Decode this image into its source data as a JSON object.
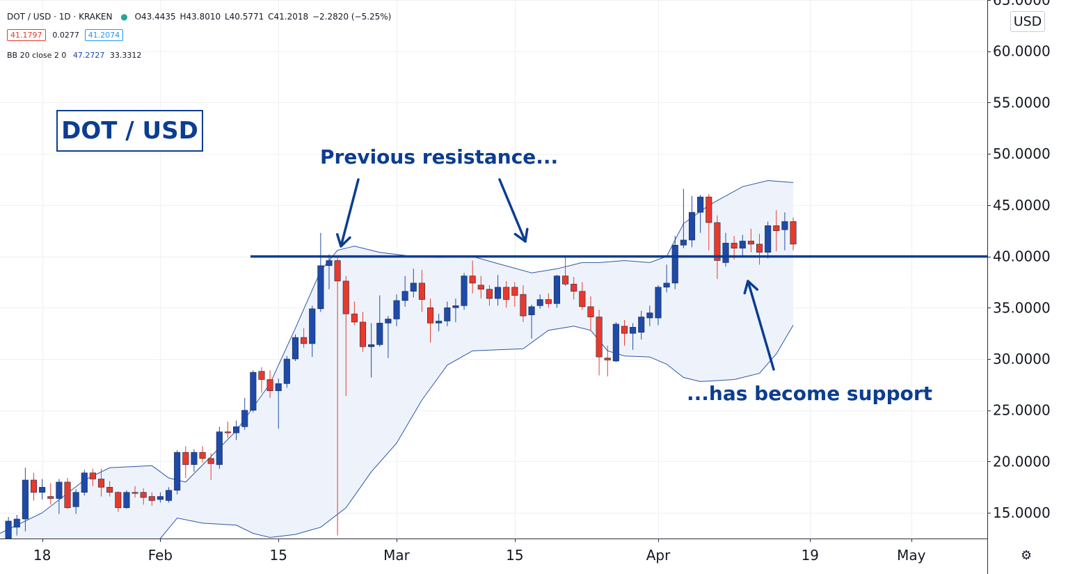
{
  "header": {
    "symbol": "DOT / USD · 1D · KRAKEN",
    "open": "O43.4435",
    "high": "H43.8010",
    "low": "L40.5771",
    "close": "C41.2018",
    "change": "−2.2820 (−5.25%)",
    "bid": "41.1797",
    "spread": "0.0277",
    "ask": "41.2074",
    "indicator_name": "BB 20 close 2 0",
    "indicator_upper": "47.2727",
    "indicator_lower": "33.3312"
  },
  "title_box": "DOT / USD",
  "annotations": {
    "resistance": "Previous resistance...",
    "support": "...has become support"
  },
  "currency_button": "USD",
  "colors": {
    "up": "#1e4aa8",
    "down": "#e8392b",
    "band": "#2a55a8",
    "band_fill": "#eef3fb",
    "annotation": "#0b3d91",
    "level_line": "#0b3d91"
  },
  "chart_data": {
    "type": "candlestick",
    "title": "DOT / USD",
    "y_range": [
      12.5,
      65
    ],
    "y_ticks": [
      "15.0000",
      "20.0000",
      "25.0000",
      "30.0000",
      "35.0000",
      "40.0000",
      "45.0000",
      "50.0000",
      "55.0000",
      "60.0000",
      "65.0000"
    ],
    "y_tick_values": [
      15,
      20,
      25,
      30,
      35,
      40,
      45,
      50,
      55,
      60,
      65
    ],
    "x_ticks": [
      {
        "label": "18",
        "date": "2021-01-18"
      },
      {
        "label": "Feb",
        "date": "2021-02-01"
      },
      {
        "label": "15",
        "date": "2021-02-15"
      },
      {
        "label": "Mar",
        "date": "2021-03-01"
      },
      {
        "label": "15",
        "date": "2021-03-15"
      },
      {
        "label": "Apr",
        "date": "2021-04-01"
      },
      {
        "label": "19",
        "date": "2021-04-19"
      },
      {
        "label": "May",
        "date": "2021-05-01"
      }
    ],
    "x_range": [
      "2021-01-13",
      "2021-05-10"
    ],
    "level": 40.0,
    "candles": [
      {
        "d": "2021-01-14",
        "o": 12.5,
        "h": 14.6,
        "l": 12.5,
        "c": 14.2
      },
      {
        "d": "2021-01-15",
        "o": 13.6,
        "h": 14.8,
        "l": 12.8,
        "c": 14.4
      },
      {
        "d": "2021-01-16",
        "o": 14.4,
        "h": 19.4,
        "l": 13.2,
        "c": 18.2
      },
      {
        "d": "2021-01-17",
        "o": 18.2,
        "h": 18.9,
        "l": 16.2,
        "c": 17.0
      },
      {
        "d": "2021-01-18",
        "o": 17.0,
        "h": 18.3,
        "l": 16.3,
        "c": 17.5
      },
      {
        "d": "2021-01-19",
        "o": 16.6,
        "h": 17.9,
        "l": 15.8,
        "c": 16.4
      },
      {
        "d": "2021-01-20",
        "o": 16.4,
        "h": 18.3,
        "l": 14.9,
        "c": 18.0
      },
      {
        "d": "2021-01-21",
        "o": 18.0,
        "h": 18.4,
        "l": 15.4,
        "c": 15.5
      },
      {
        "d": "2021-01-22",
        "o": 15.6,
        "h": 17.3,
        "l": 14.9,
        "c": 17.0
      },
      {
        "d": "2021-01-23",
        "o": 17.0,
        "h": 19.2,
        "l": 16.7,
        "c": 18.9
      },
      {
        "d": "2021-01-24",
        "o": 18.9,
        "h": 19.3,
        "l": 17.6,
        "c": 18.3
      },
      {
        "d": "2021-01-25",
        "o": 18.3,
        "h": 19.3,
        "l": 16.6,
        "c": 17.5
      },
      {
        "d": "2021-01-26",
        "o": 17.5,
        "h": 18.1,
        "l": 16.6,
        "c": 17.0
      },
      {
        "d": "2021-01-27",
        "o": 17.0,
        "h": 17.1,
        "l": 15.1,
        "c": 15.5
      },
      {
        "d": "2021-01-28",
        "o": 15.5,
        "h": 17.2,
        "l": 15.4,
        "c": 17.0
      },
      {
        "d": "2021-01-29",
        "o": 17.0,
        "h": 17.6,
        "l": 16.5,
        "c": 16.9
      },
      {
        "d": "2021-01-30",
        "o": 17.0,
        "h": 17.4,
        "l": 15.8,
        "c": 16.5
      },
      {
        "d": "2021-01-31",
        "o": 16.6,
        "h": 17.0,
        "l": 15.7,
        "c": 16.2
      },
      {
        "d": "2021-02-01",
        "o": 16.3,
        "h": 17.0,
        "l": 16.0,
        "c": 16.6
      },
      {
        "d": "2021-02-02",
        "o": 16.2,
        "h": 17.5,
        "l": 16.0,
        "c": 17.2
      },
      {
        "d": "2021-02-03",
        "o": 17.2,
        "h": 21.1,
        "l": 16.8,
        "c": 20.9
      },
      {
        "d": "2021-02-04",
        "o": 20.9,
        "h": 21.5,
        "l": 18.4,
        "c": 19.7
      },
      {
        "d": "2021-02-05",
        "o": 19.7,
        "h": 21.2,
        "l": 19.0,
        "c": 20.9
      },
      {
        "d": "2021-02-06",
        "o": 20.9,
        "h": 21.5,
        "l": 19.9,
        "c": 20.3
      },
      {
        "d": "2021-02-07",
        "o": 20.3,
        "h": 20.8,
        "l": 18.2,
        "c": 19.8
      },
      {
        "d": "2021-02-08",
        "o": 19.7,
        "h": 23.4,
        "l": 19.3,
        "c": 22.9
      },
      {
        "d": "2021-02-09",
        "o": 22.9,
        "h": 23.9,
        "l": 22.3,
        "c": 22.8
      },
      {
        "d": "2021-02-10",
        "o": 22.8,
        "h": 24.0,
        "l": 22.1,
        "c": 23.4
      },
      {
        "d": "2021-02-11",
        "o": 23.4,
        "h": 26.2,
        "l": 23.1,
        "c": 25.0
      },
      {
        "d": "2021-02-12",
        "o": 25.0,
        "h": 28.9,
        "l": 24.8,
        "c": 28.7
      },
      {
        "d": "2021-02-13",
        "o": 28.8,
        "h": 29.2,
        "l": 26.7,
        "c": 28.0
      },
      {
        "d": "2021-02-14",
        "o": 28.0,
        "h": 28.9,
        "l": 26.2,
        "c": 26.9
      },
      {
        "d": "2021-02-15",
        "o": 26.9,
        "h": 28.1,
        "l": 23.2,
        "c": 27.6
      },
      {
        "d": "2021-02-16",
        "o": 27.6,
        "h": 30.3,
        "l": 27.2,
        "c": 30.0
      },
      {
        "d": "2021-02-17",
        "o": 30.0,
        "h": 32.4,
        "l": 29.8,
        "c": 32.1
      },
      {
        "d": "2021-02-18",
        "o": 32.1,
        "h": 33.0,
        "l": 31.1,
        "c": 31.5
      },
      {
        "d": "2021-02-19",
        "o": 31.5,
        "h": 35.2,
        "l": 30.2,
        "c": 34.9
      },
      {
        "d": "2021-02-20",
        "o": 34.9,
        "h": 42.3,
        "l": 34.6,
        "c": 39.1
      },
      {
        "d": "2021-02-21",
        "o": 39.1,
        "h": 40.2,
        "l": 36.8,
        "c": 39.6
      },
      {
        "d": "2021-02-22",
        "o": 39.6,
        "h": 40.0,
        "l": 12.8,
        "c": 37.6
      },
      {
        "d": "2021-02-23",
        "o": 37.6,
        "h": 38.1,
        "l": 26.4,
        "c": 34.4
      },
      {
        "d": "2021-02-24",
        "o": 34.4,
        "h": 35.6,
        "l": 33.3,
        "c": 33.6
      },
      {
        "d": "2021-02-25",
        "o": 33.6,
        "h": 34.6,
        "l": 30.7,
        "c": 31.2
      },
      {
        "d": "2021-02-26",
        "o": 31.2,
        "h": 33.5,
        "l": 28.2,
        "c": 31.4
      },
      {
        "d": "2021-02-27",
        "o": 31.4,
        "h": 36.2,
        "l": 31.2,
        "c": 33.5
      },
      {
        "d": "2021-02-28",
        "o": 33.5,
        "h": 34.2,
        "l": 30.1,
        "c": 33.9
      },
      {
        "d": "2021-03-01",
        "o": 33.9,
        "h": 36.3,
        "l": 33.2,
        "c": 35.7
      },
      {
        "d": "2021-03-02",
        "o": 35.7,
        "h": 38.1,
        "l": 35.1,
        "c": 36.6
      },
      {
        "d": "2021-03-03",
        "o": 36.6,
        "h": 38.8,
        "l": 36.0,
        "c": 37.4
      },
      {
        "d": "2021-03-04",
        "o": 37.4,
        "h": 38.7,
        "l": 34.6,
        "c": 35.8
      },
      {
        "d": "2021-03-05",
        "o": 35.0,
        "h": 35.9,
        "l": 31.6,
        "c": 33.5
      },
      {
        "d": "2021-03-06",
        "o": 33.5,
        "h": 34.4,
        "l": 32.7,
        "c": 33.7
      },
      {
        "d": "2021-03-07",
        "o": 33.7,
        "h": 35.6,
        "l": 33.2,
        "c": 35.0
      },
      {
        "d": "2021-03-08",
        "o": 35.0,
        "h": 35.9,
        "l": 33.6,
        "c": 35.2
      },
      {
        "d": "2021-03-09",
        "o": 35.2,
        "h": 38.4,
        "l": 34.8,
        "c": 38.1
      },
      {
        "d": "2021-03-10",
        "o": 38.1,
        "h": 39.6,
        "l": 36.4,
        "c": 37.4
      },
      {
        "d": "2021-03-11",
        "o": 37.2,
        "h": 38.1,
        "l": 35.9,
        "c": 36.8
      },
      {
        "d": "2021-03-12",
        "o": 36.8,
        "h": 37.2,
        "l": 35.2,
        "c": 35.9
      },
      {
        "d": "2021-03-13",
        "o": 35.9,
        "h": 38.2,
        "l": 35.2,
        "c": 37.0
      },
      {
        "d": "2021-03-14",
        "o": 37.0,
        "h": 37.6,
        "l": 35.0,
        "c": 35.8
      },
      {
        "d": "2021-03-15",
        "o": 37.0,
        "h": 37.5,
        "l": 35.1,
        "c": 36.2
      },
      {
        "d": "2021-03-16",
        "o": 36.3,
        "h": 37.2,
        "l": 33.6,
        "c": 34.2
      },
      {
        "d": "2021-03-17",
        "o": 34.3,
        "h": 35.3,
        "l": 32.0,
        "c": 35.1
      },
      {
        "d": "2021-03-18",
        "o": 35.2,
        "h": 36.3,
        "l": 34.9,
        "c": 35.8
      },
      {
        "d": "2021-03-19",
        "o": 35.8,
        "h": 36.4,
        "l": 35.0,
        "c": 35.4
      },
      {
        "d": "2021-03-20",
        "o": 35.4,
        "h": 38.2,
        "l": 35.0,
        "c": 38.1
      },
      {
        "d": "2021-03-21",
        "o": 38.1,
        "h": 40.1,
        "l": 37.1,
        "c": 37.3
      },
      {
        "d": "2021-03-22",
        "o": 37.3,
        "h": 38.0,
        "l": 35.8,
        "c": 36.6
      },
      {
        "d": "2021-03-23",
        "o": 36.6,
        "h": 37.5,
        "l": 34.8,
        "c": 35.1
      },
      {
        "d": "2021-03-24",
        "o": 35.1,
        "h": 36.1,
        "l": 32.8,
        "c": 34.1
      },
      {
        "d": "2021-03-25",
        "o": 34.1,
        "h": 34.8,
        "l": 28.4,
        "c": 30.2
      },
      {
        "d": "2021-03-26",
        "o": 30.1,
        "h": 31.3,
        "l": 28.3,
        "c": 29.9
      },
      {
        "d": "2021-03-27",
        "o": 29.8,
        "h": 33.6,
        "l": 29.7,
        "c": 33.4
      },
      {
        "d": "2021-03-28",
        "o": 33.2,
        "h": 33.8,
        "l": 31.3,
        "c": 32.5
      },
      {
        "d": "2021-03-29",
        "o": 32.5,
        "h": 33.5,
        "l": 30.9,
        "c": 33.1
      },
      {
        "d": "2021-03-30",
        "o": 32.6,
        "h": 34.7,
        "l": 31.9,
        "c": 34.1
      },
      {
        "d": "2021-03-31",
        "o": 34.0,
        "h": 35.2,
        "l": 33.2,
        "c": 34.5
      },
      {
        "d": "2021-04-01",
        "o": 34.0,
        "h": 37.2,
        "l": 33.3,
        "c": 37.0
      },
      {
        "d": "2021-04-02",
        "o": 37.0,
        "h": 39.2,
        "l": 36.5,
        "c": 37.4
      },
      {
        "d": "2021-04-03",
        "o": 37.4,
        "h": 42.0,
        "l": 36.8,
        "c": 41.1
      },
      {
        "d": "2021-04-04",
        "o": 41.1,
        "h": 46.6,
        "l": 40.8,
        "c": 41.6
      },
      {
        "d": "2021-04-05",
        "o": 41.6,
        "h": 45.9,
        "l": 40.9,
        "c": 44.3
      },
      {
        "d": "2021-04-06",
        "o": 44.3,
        "h": 46.0,
        "l": 42.3,
        "c": 45.8
      },
      {
        "d": "2021-04-07",
        "o": 45.8,
        "h": 46.1,
        "l": 40.6,
        "c": 43.3
      },
      {
        "d": "2021-04-08",
        "o": 43.3,
        "h": 44.0,
        "l": 37.8,
        "c": 39.6
      },
      {
        "d": "2021-04-09",
        "o": 39.4,
        "h": 42.3,
        "l": 39.0,
        "c": 41.3
      },
      {
        "d": "2021-04-10",
        "o": 41.3,
        "h": 42.0,
        "l": 39.7,
        "c": 40.8
      },
      {
        "d": "2021-04-11",
        "o": 40.8,
        "h": 42.1,
        "l": 40.1,
        "c": 41.5
      },
      {
        "d": "2021-04-12",
        "o": 41.5,
        "h": 42.7,
        "l": 40.4,
        "c": 41.2
      },
      {
        "d": "2021-04-13",
        "o": 41.2,
        "h": 42.2,
        "l": 39.2,
        "c": 40.4
      },
      {
        "d": "2021-04-14",
        "o": 40.4,
        "h": 43.4,
        "l": 39.8,
        "c": 43.0
      },
      {
        "d": "2021-04-15",
        "o": 43.0,
        "h": 44.5,
        "l": 40.5,
        "c": 42.5
      },
      {
        "d": "2021-04-16",
        "o": 42.6,
        "h": 44.3,
        "l": 40.6,
        "c": 43.4
      },
      {
        "d": "2021-04-17",
        "o": 43.4,
        "h": 43.8,
        "l": 40.6,
        "c": 41.2
      }
    ],
    "bollinger": {
      "upper": [
        {
          "d": "2021-01-13",
          "v": 13.0
        },
        {
          "d": "2021-01-18",
          "v": 15.0
        },
        {
          "d": "2021-01-23",
          "v": 18.2
        },
        {
          "d": "2021-01-26",
          "v": 19.4
        },
        {
          "d": "2021-01-31",
          "v": 19.6
        },
        {
          "d": "2021-02-02",
          "v": 18.4
        },
        {
          "d": "2021-02-04",
          "v": 18.0
        },
        {
          "d": "2021-02-10",
          "v": 23.0
        },
        {
          "d": "2021-02-14",
          "v": 27.6
        },
        {
          "d": "2021-02-17",
          "v": 33.0
        },
        {
          "d": "2021-02-20",
          "v": 38.6
        },
        {
          "d": "2021-02-22",
          "v": 40.6
        },
        {
          "d": "2021-02-24",
          "v": 41.0
        },
        {
          "d": "2021-02-27",
          "v": 40.4
        },
        {
          "d": "2021-03-03",
          "v": 40.0
        },
        {
          "d": "2021-03-06",
          "v": 39.9
        },
        {
          "d": "2021-03-10",
          "v": 40.0
        },
        {
          "d": "2021-03-13",
          "v": 39.3
        },
        {
          "d": "2021-03-17",
          "v": 38.4
        },
        {
          "d": "2021-03-20",
          "v": 38.8
        },
        {
          "d": "2021-03-23",
          "v": 39.4
        },
        {
          "d": "2021-03-25",
          "v": 39.4
        },
        {
          "d": "2021-03-28",
          "v": 39.6
        },
        {
          "d": "2021-03-31",
          "v": 39.4
        },
        {
          "d": "2021-04-02",
          "v": 40.0
        },
        {
          "d": "2021-04-04",
          "v": 43.2
        },
        {
          "d": "2021-04-07",
          "v": 45.0
        },
        {
          "d": "2021-04-11",
          "v": 46.8
        },
        {
          "d": "2021-04-14",
          "v": 47.4
        },
        {
          "d": "2021-04-17",
          "v": 47.2
        }
      ],
      "lower": [
        {
          "d": "2021-02-01",
          "v": 12.5
        },
        {
          "d": "2021-02-03",
          "v": 14.5
        },
        {
          "d": "2021-02-06",
          "v": 14.0
        },
        {
          "d": "2021-02-10",
          "v": 13.8
        },
        {
          "d": "2021-02-12",
          "v": 13.0
        },
        {
          "d": "2021-02-14",
          "v": 12.6
        },
        {
          "d": "2021-02-17",
          "v": 12.9
        },
        {
          "d": "2021-02-20",
          "v": 13.6
        },
        {
          "d": "2021-02-23",
          "v": 15.5
        },
        {
          "d": "2021-02-26",
          "v": 19.0
        },
        {
          "d": "2021-03-01",
          "v": 21.8
        },
        {
          "d": "2021-03-04",
          "v": 26.0
        },
        {
          "d": "2021-03-07",
          "v": 29.4
        },
        {
          "d": "2021-03-10",
          "v": 30.8
        },
        {
          "d": "2021-03-16",
          "v": 31.0
        },
        {
          "d": "2021-03-19",
          "v": 32.8
        },
        {
          "d": "2021-03-22",
          "v": 33.2
        },
        {
          "d": "2021-03-24",
          "v": 32.8
        },
        {
          "d": "2021-03-26",
          "v": 30.8
        },
        {
          "d": "2021-03-28",
          "v": 30.3
        },
        {
          "d": "2021-03-31",
          "v": 30.2
        },
        {
          "d": "2021-04-02",
          "v": 29.5
        },
        {
          "d": "2021-04-04",
          "v": 28.2
        },
        {
          "d": "2021-04-06",
          "v": 27.8
        },
        {
          "d": "2021-04-10",
          "v": 28.0
        },
        {
          "d": "2021-04-13",
          "v": 28.6
        },
        {
          "d": "2021-04-15",
          "v": 30.5
        },
        {
          "d": "2021-04-17",
          "v": 33.3
        }
      ]
    }
  }
}
